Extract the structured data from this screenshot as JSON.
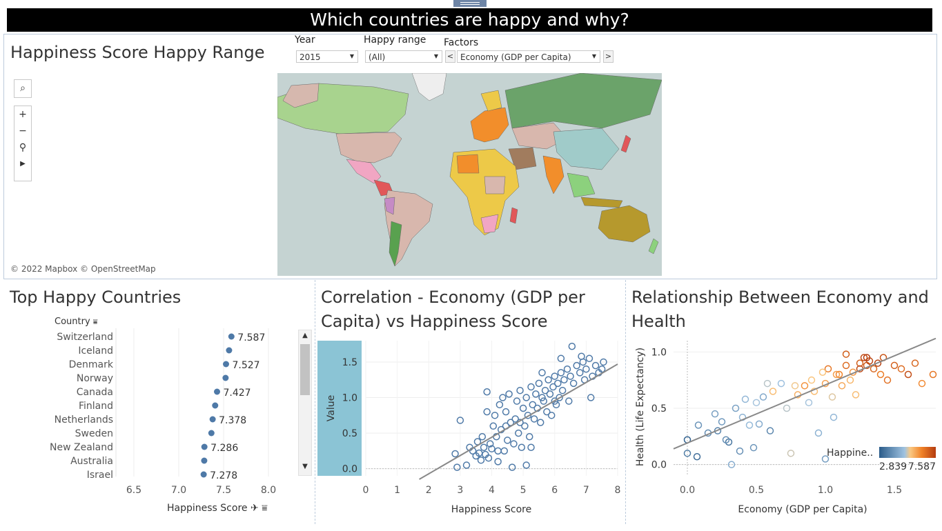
{
  "dashboard": {
    "title": "Which countries are happy and why?"
  },
  "map_panel": {
    "title": "Happiness Score Happy Range",
    "attribution": "© 2022 Mapbox © OpenStreetMap",
    "filters": {
      "year": {
        "label": "Year",
        "value": "2015"
      },
      "happy_range": {
        "label": "Happy range",
        "value": "(All)"
      },
      "factors": {
        "label": "Factors",
        "value": "Economy (GDP per Capita)",
        "prev": "<",
        "next": ">"
      }
    },
    "tools": {
      "search": "search-icon",
      "zoom_in": "+",
      "zoom_out": "−",
      "pin": "pin-icon",
      "play": "▶"
    },
    "ocean_color": "#c5d3d2"
  },
  "top_countries": {
    "title": "Top Happy Countries",
    "column_header": "Country",
    "xlabel": "Happiness Score",
    "chart_data": {
      "type": "scatter",
      "categories": [
        "Switzerland",
        "Iceland",
        "Denmark",
        "Norway",
        "Canada",
        "Finland",
        "Netherlands",
        "Sweden",
        "New Zealand",
        "Australia",
        "Israel"
      ],
      "values": [
        7.587,
        7.561,
        7.527,
        7.522,
        7.427,
        7.406,
        7.378,
        7.364,
        7.286,
        7.284,
        7.278
      ],
      "labels": [
        "7.587",
        "",
        "7.527",
        "",
        "7.427",
        "",
        "7.378",
        "",
        "7.286",
        "",
        "7.278"
      ],
      "xticks": [
        "6.5",
        "7.0",
        "7.5",
        "8.0"
      ],
      "xlim": [
        6.3,
        8.3
      ],
      "color": "#4e79a7"
    }
  },
  "correlation": {
    "title_line1": "Correlation - Economy (GDP per",
    "title_line2": "Capita) vs Happiness Score",
    "xlabel": "Happiness Score",
    "ylabel": "Value",
    "chart_data": {
      "type": "scatter",
      "xlim": [
        0,
        8
      ],
      "ylim": [
        -0.1,
        1.8
      ],
      "xticks": [
        "0",
        "1",
        "2",
        "3",
        "4",
        "5",
        "6",
        "7",
        "8"
      ],
      "yticks": [
        "0.0",
        "0.5",
        "1.0",
        "1.5"
      ],
      "color": "#4e79a7",
      "points": [
        [
          2.84,
          0.21
        ],
        [
          2.9,
          0.02
        ],
        [
          3.0,
          0.68
        ],
        [
          3.3,
          0.3
        ],
        [
          3.4,
          0.25
        ],
        [
          3.5,
          0.18
        ],
        [
          3.55,
          0.38
        ],
        [
          3.6,
          0.22
        ],
        [
          3.66,
          0.12
        ],
        [
          3.7,
          0.45
        ],
        [
          3.75,
          0.3
        ],
        [
          3.8,
          0.2
        ],
        [
          3.85,
          1.08
        ],
        [
          3.9,
          0.15
        ],
        [
          3.95,
          0.35
        ],
        [
          4.0,
          0.28
        ],
        [
          4.05,
          0.6
        ],
        [
          4.1,
          0.75
        ],
        [
          4.15,
          0.45
        ],
        [
          4.2,
          0.1
        ],
        [
          4.25,
          0.9
        ],
        [
          4.3,
          0.55
        ],
        [
          4.35,
          1.0
        ],
        [
          4.4,
          0.25
        ],
        [
          4.45,
          0.8
        ],
        [
          4.5,
          0.4
        ],
        [
          4.55,
          1.05
        ],
        [
          4.6,
          0.65
        ],
        [
          4.65,
          0.02
        ],
        [
          4.7,
          0.35
        ],
        [
          4.75,
          0.7
        ],
        [
          4.8,
          0.95
        ],
        [
          4.85,
          0.5
        ],
        [
          4.9,
          1.1
        ],
        [
          4.95,
          0.3
        ],
        [
          5.0,
          0.85
        ],
        [
          5.05,
          0.6
        ],
        [
          5.1,
          1.0
        ],
        [
          5.15,
          0.75
        ],
        [
          5.2,
          0.45
        ],
        [
          5.25,
          1.15
        ],
        [
          5.3,
          0.9
        ],
        [
          5.35,
          0.7
        ],
        [
          5.4,
          1.05
        ],
        [
          5.45,
          0.85
        ],
        [
          5.5,
          1.2
        ],
        [
          5.55,
          0.65
        ],
        [
          5.6,
          1.0
        ],
        [
          5.65,
          0.95
        ],
        [
          5.7,
          1.1
        ],
        [
          5.75,
          0.8
        ],
        [
          5.8,
          1.25
        ],
        [
          5.85,
          1.05
        ],
        [
          5.9,
          0.75
        ],
        [
          5.95,
          1.15
        ],
        [
          6.0,
          1.3
        ],
        [
          6.05,
          0.9
        ],
        [
          6.1,
          1.2
        ],
        [
          6.15,
          1.0
        ],
        [
          6.2,
          1.35
        ],
        [
          6.25,
          1.1
        ],
        [
          6.3,
          1.25
        ],
        [
          6.4,
          1.4
        ],
        [
          6.45,
          0.95
        ],
        [
          6.5,
          1.3
        ],
        [
          6.6,
          1.2
        ],
        [
          6.7,
          1.45
        ],
        [
          6.8,
          1.35
        ],
        [
          6.9,
          1.5
        ],
        [
          6.95,
          1.25
        ],
        [
          7.0,
          1.4
        ],
        [
          7.1,
          1.55
        ],
        [
          7.2,
          1.3
        ],
        [
          7.3,
          1.45
        ],
        [
          7.4,
          1.35
        ],
        [
          7.5,
          1.4
        ],
        [
          7.55,
          1.5
        ],
        [
          6.55,
          1.72
        ],
        [
          6.2,
          1.55
        ],
        [
          4.2,
          0.25
        ],
        [
          3.2,
          0.05
        ],
        [
          5.1,
          0.05
        ],
        [
          5.25,
          0.3
        ],
        [
          4.45,
          0.6
        ],
        [
          6.0,
          0.95
        ],
        [
          7.15,
          1.0
        ],
        [
          6.85,
          1.58
        ],
        [
          5.6,
          1.35
        ],
        [
          4.9,
          0.65
        ],
        [
          3.85,
          0.8
        ]
      ],
      "trend": [
        [
          1.7,
          -0.25
        ],
        [
          8.0,
          1.47
        ]
      ]
    }
  },
  "relationship": {
    "title_line1": "Relationship Between Economy and",
    "title_line2": "Health",
    "xlabel": "Economy (GDP per Capita)",
    "ylabel": "Health (Life Expectancy)",
    "legend": {
      "title": "Happine..",
      "min": "2.839",
      "max": "7.587"
    },
    "chart_data": {
      "type": "scatter",
      "xlim": [
        -0.1,
        1.8
      ],
      "ylim": [
        -0.1,
        1.1
      ],
      "xticks": [
        "0.0",
        "0.5",
        "1.0",
        "1.5"
      ],
      "yticks": [
        "0.0",
        "0.5",
        "1.0"
      ],
      "points": [
        [
          0.0,
          0.22,
          3.0
        ],
        [
          0.0,
          0.1,
          3.5
        ],
        [
          0.07,
          0.07,
          3.2
        ],
        [
          0.08,
          0.35,
          4.0
        ],
        [
          0.15,
          0.28,
          3.8
        ],
        [
          0.2,
          0.45,
          4.2
        ],
        [
          0.22,
          0.3,
          3.6
        ],
        [
          0.25,
          0.38,
          4.1
        ],
        [
          0.3,
          0.2,
          3.4
        ],
        [
          0.32,
          0.0,
          4.5
        ],
        [
          0.35,
          0.5,
          4.3
        ],
        [
          0.38,
          0.12,
          3.9
        ],
        [
          0.4,
          0.42,
          4.6
        ],
        [
          0.45,
          0.35,
          4.8
        ],
        [
          0.48,
          0.15,
          4.0
        ],
        [
          0.5,
          0.55,
          5.0
        ],
        [
          0.55,
          0.6,
          4.4
        ],
        [
          0.6,
          0.3,
          3.7
        ],
        [
          0.62,
          0.65,
          5.6
        ],
        [
          0.68,
          0.72,
          4.9
        ],
        [
          0.72,
          0.5,
          5.1
        ],
        [
          0.75,
          0.1,
          5.2
        ],
        [
          0.78,
          0.7,
          5.4
        ],
        [
          0.8,
          0.62,
          5.8
        ],
        [
          0.85,
          0.7,
          6.2
        ],
        [
          0.88,
          0.55,
          5.0
        ],
        [
          0.9,
          0.75,
          5.5
        ],
        [
          0.95,
          0.28,
          4.6
        ],
        [
          1.0,
          0.05,
          4.2
        ],
        [
          1.0,
          0.72,
          6.0
        ],
        [
          1.02,
          0.85,
          6.6
        ],
        [
          1.05,
          0.6,
          5.3
        ],
        [
          1.06,
          0.42,
          4.7
        ],
        [
          1.1,
          0.8,
          6.4
        ],
        [
          1.12,
          0.7,
          5.9
        ],
        [
          1.15,
          0.88,
          6.8
        ],
        [
          1.18,
          0.75,
          5.7
        ],
        [
          1.2,
          0.82,
          6.1
        ],
        [
          1.25,
          0.9,
          7.0
        ],
        [
          1.28,
          0.95,
          7.3
        ],
        [
          1.3,
          0.88,
          7.1
        ],
        [
          1.32,
          0.92,
          7.4
        ],
        [
          1.35,
          0.85,
          6.9
        ],
        [
          1.38,
          0.9,
          7.5
        ],
        [
          1.4,
          0.8,
          6.5
        ],
        [
          1.42,
          0.95,
          7.2
        ],
        [
          1.45,
          0.75,
          6.7
        ],
        [
          1.5,
          0.88,
          7.0
        ],
        [
          1.55,
          0.85,
          6.8
        ],
        [
          1.6,
          0.8,
          7.3
        ],
        [
          1.65,
          0.9,
          6.9
        ],
        [
          1.7,
          0.72,
          6.3
        ],
        [
          1.78,
          0.8,
          6.6
        ],
        [
          1.22,
          0.62,
          5.6
        ],
        [
          1.15,
          0.98,
          7.0
        ],
        [
          1.3,
          0.95,
          7.55
        ],
        [
          1.25,
          0.85,
          7.4
        ],
        [
          0.98,
          0.82,
          5.5
        ],
        [
          1.08,
          0.8,
          6.0
        ],
        [
          0.92,
          0.65,
          5.6
        ],
        [
          0.58,
          0.72,
          5.1
        ],
        [
          0.42,
          0.58,
          4.7
        ],
        [
          0.28,
          0.22,
          3.9
        ],
        [
          0.52,
          0.36,
          4.5
        ]
      ],
      "trend": [
        [
          -0.1,
          0.14
        ],
        [
          1.8,
          1.12
        ]
      ]
    }
  }
}
